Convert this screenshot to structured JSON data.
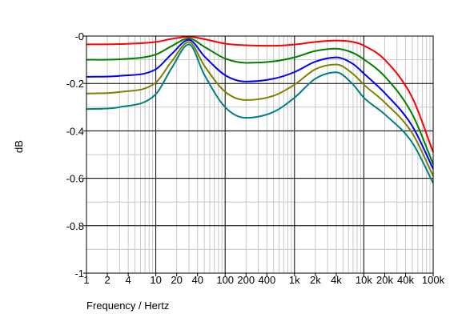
{
  "chart_data": {
    "type": "line",
    "title": "",
    "xlabel": "Frequency / Hertz",
    "ylabel": "dB",
    "x_scale": "log",
    "xlim": [
      1,
      100000
    ],
    "ylim": [
      -1,
      0
    ],
    "grid": true,
    "legend": "none",
    "x_major_ticks": [
      1,
      10,
      100,
      1000,
      10000,
      100000
    ],
    "x_tick_labels": [
      {
        "x": 1,
        "label": "1"
      },
      {
        "x": 2,
        "label": "2"
      },
      {
        "x": 4,
        "label": "4"
      },
      {
        "x": 10,
        "label": "10"
      },
      {
        "x": 20,
        "label": "20"
      },
      {
        "x": 40,
        "label": "40"
      },
      {
        "x": 100,
        "label": "100"
      },
      {
        "x": 200,
        "label": "200"
      },
      {
        "x": 400,
        "label": "400"
      },
      {
        "x": 1000,
        "label": "1k"
      },
      {
        "x": 2000,
        "label": "2k"
      },
      {
        "x": 4000,
        "label": "4k"
      },
      {
        "x": 10000,
        "label": "10k"
      },
      {
        "x": 20000,
        "label": "20k"
      },
      {
        "x": 40000,
        "label": "40k"
      },
      {
        "x": 100000,
        "label": "100k"
      }
    ],
    "y_major_ticks": [
      {
        "y": 0,
        "label": "-0"
      },
      {
        "y": -0.2,
        "label": "-0.2"
      },
      {
        "y": -0.4,
        "label": "-0.4"
      },
      {
        "y": -0.6,
        "label": "-0.6"
      },
      {
        "y": -0.8,
        "label": "-0.8"
      },
      {
        "y": -1,
        "label": "-1"
      }
    ],
    "y_minor_step": 0.1,
    "x": [
      1,
      3,
      10,
      17,
      30,
      50,
      100,
      200,
      500,
      1000,
      2000,
      4000,
      7000,
      10000,
      20000,
      50000,
      100000
    ],
    "series": [
      {
        "color": "#ff0000",
        "values": [
          -0.035,
          -0.034,
          -0.025,
          -0.012,
          -0.003,
          -0.013,
          -0.032,
          -0.039,
          -0.041,
          -0.036,
          -0.025,
          -0.019,
          -0.025,
          -0.04,
          -0.1,
          -0.26,
          -0.49
        ]
      },
      {
        "color": "#008000",
        "values": [
          -0.1,
          -0.098,
          -0.078,
          -0.042,
          -0.01,
          -0.045,
          -0.095,
          -0.113,
          -0.107,
          -0.09,
          -0.063,
          -0.053,
          -0.071,
          -0.098,
          -0.17,
          -0.33,
          -0.54
        ]
      },
      {
        "color": "#0000ff",
        "values": [
          -0.172,
          -0.168,
          -0.14,
          -0.075,
          -0.016,
          -0.085,
          -0.165,
          -0.192,
          -0.18,
          -0.152,
          -0.108,
          -0.09,
          -0.118,
          -0.158,
          -0.24,
          -0.38,
          -0.56
        ]
      },
      {
        "color": "#808000",
        "values": [
          -0.243,
          -0.236,
          -0.196,
          -0.106,
          -0.025,
          -0.125,
          -0.235,
          -0.27,
          -0.252,
          -0.205,
          -0.14,
          -0.12,
          -0.16,
          -0.205,
          -0.28,
          -0.41,
          -0.59
        ]
      },
      {
        "color": "#008080",
        "values": [
          -0.308,
          -0.3,
          -0.245,
          -0.134,
          -0.035,
          -0.163,
          -0.3,
          -0.345,
          -0.32,
          -0.26,
          -0.18,
          -0.153,
          -0.205,
          -0.26,
          -0.33,
          -0.45,
          -0.62
        ]
      }
    ]
  }
}
